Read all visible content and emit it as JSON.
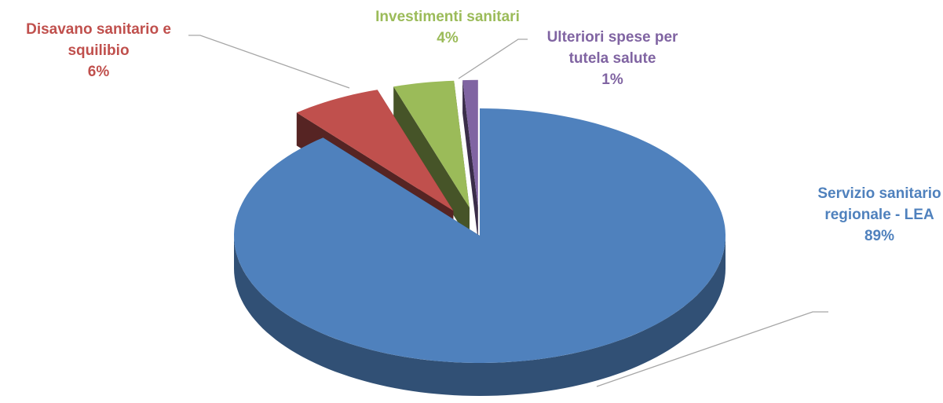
{
  "chart_data": {
    "type": "pie",
    "categories": [
      "Servizio sanitario regionale - LEA",
      "Disavano sanitario e squilibio",
      "Investimenti sanitari",
      "Ulteriori spese per tutela salute"
    ],
    "values": [
      89,
      6,
      4,
      1
    ],
    "value_labels": [
      "89%",
      "6%",
      "4%",
      "1%"
    ],
    "colors": [
      "#4f81bd",
      "#c0504d",
      "#9bbb59",
      "#8064a2"
    ]
  }
}
